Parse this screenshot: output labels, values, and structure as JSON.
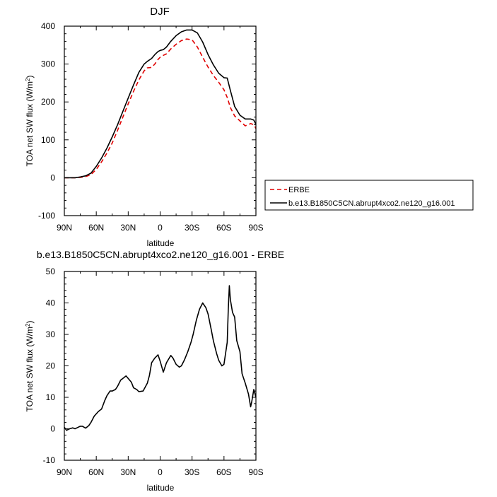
{
  "chart_data": [
    {
      "type": "line",
      "title": "DJF",
      "xlabel": "latitude",
      "ylabel": "TOA net SW flux (W/m",
      "ylabel_sup": "2",
      "ylabel_close": ")",
      "xlim": [
        90,
        -90
      ],
      "ylim": [
        -100,
        400
      ],
      "xticks": [
        90,
        60,
        30,
        0,
        -30,
        -60,
        -90
      ],
      "xtick_labels": [
        "90N",
        "60N",
        "30N",
        "0",
        "30S",
        "60S",
        "90S"
      ],
      "yticks": [
        -100,
        0,
        100,
        200,
        300,
        400
      ],
      "ytick_labels": [
        "-100",
        "0",
        "100",
        "200",
        "300",
        "400"
      ],
      "legend_position": "right, outside plot",
      "series": [
        {
          "name": "ERBE",
          "color": "#e00000",
          "dash": "dashed",
          "x": [
            90,
            85,
            80,
            75,
            70,
            65,
            60,
            55,
            50,
            45,
            40,
            35,
            30,
            25,
            20,
            15,
            12,
            8,
            5,
            2,
            0,
            -3,
            -6,
            -10,
            -15,
            -20,
            -25,
            -30,
            -35,
            -40,
            -45,
            -50,
            -55,
            -60,
            -63,
            -66,
            -70,
            -75,
            -80,
            -85,
            -88,
            -90
          ],
          "y": [
            0,
            0,
            0,
            1,
            3,
            8,
            22,
            42,
            65,
            92,
            125,
            160,
            195,
            228,
            258,
            282,
            290,
            291,
            300,
            312,
            318,
            323,
            327,
            340,
            352,
            362,
            366,
            364,
            345,
            318,
            292,
            270,
            252,
            232,
            212,
            185,
            163,
            150,
            137,
            143,
            140,
            130
          ]
        },
        {
          "name": "b.e13.B1850C5CN.abrupt4xco2.ne120_g16.001",
          "color": "#000000",
          "dash": "solid",
          "x": [
            90,
            85,
            80,
            75,
            70,
            65,
            60,
            55,
            50,
            45,
            40,
            35,
            30,
            25,
            20,
            15,
            12,
            8,
            5,
            2,
            0,
            -3,
            -6,
            -10,
            -15,
            -20,
            -25,
            -30,
            -35,
            -40,
            -45,
            -50,
            -55,
            -60,
            -63,
            -66,
            -70,
            -75,
            -80,
            -85,
            -88,
            -90
          ],
          "y": [
            0,
            0,
            0,
            2,
            5,
            12,
            30,
            52,
            78,
            108,
            140,
            175,
            210,
            245,
            278,
            300,
            307,
            315,
            325,
            333,
            336,
            338,
            345,
            360,
            375,
            385,
            390,
            390,
            382,
            358,
            325,
            298,
            276,
            264,
            263,
            230,
            188,
            165,
            155,
            155,
            152,
            141
          ]
        }
      ]
    },
    {
      "type": "line",
      "title": "b.e13.B1850C5CN.abrupt4xco2.ne120_g16.001 - ERBE",
      "xlabel": "latitude",
      "ylabel": "TOA net SW flux (W/m",
      "ylabel_sup": "2",
      "ylabel_close": ")",
      "xlim": [
        90,
        -90
      ],
      "ylim": [
        -10,
        50
      ],
      "xticks": [
        90,
        60,
        30,
        0,
        -30,
        -60,
        -90
      ],
      "xtick_labels": [
        "90N",
        "60N",
        "30N",
        "0",
        "30S",
        "60S",
        "90S"
      ],
      "yticks": [
        -10,
        0,
        10,
        20,
        30,
        40,
        50
      ],
      "ytick_labels": [
        "-10",
        "0",
        "10",
        "20",
        "30",
        "40",
        "50"
      ],
      "series": [
        {
          "color": "#000000",
          "dash": "solid",
          "x": [
            90,
            88,
            85,
            82,
            80,
            77,
            75,
            73,
            70,
            67,
            65,
            62,
            58,
            55,
            52,
            50,
            47,
            45,
            42,
            40,
            37,
            35,
            32,
            30,
            27,
            25,
            22,
            20,
            16,
            12,
            10,
            8,
            5,
            2,
            0,
            -3,
            -6,
            -10,
            -12,
            -15,
            -18,
            -20,
            -23,
            -26,
            -29,
            -31,
            -34,
            -37,
            -40,
            -43,
            -45,
            -48,
            -50,
            -53,
            -55,
            -58,
            -60,
            -63,
            -64,
            -65,
            -66,
            -68,
            -70,
            -72,
            -75,
            -77,
            -80,
            -83,
            -85,
            -86,
            -88,
            -90
          ],
          "y": [
            0.5,
            -0.5,
            0,
            0.3,
            0,
            0.5,
            0.8,
            0.8,
            0.2,
            1.0,
            2.0,
            4.0,
            5.5,
            6.3,
            9.0,
            10.5,
            12.0,
            12.0,
            12.5,
            13.5,
            15.5,
            16.0,
            16.8,
            16.0,
            14.8,
            13.0,
            12.5,
            11.8,
            12.0,
            14.5,
            17.0,
            21.0,
            22.5,
            23.5,
            21.5,
            18.0,
            21.0,
            23.3,
            22.5,
            20.5,
            19.6,
            20.0,
            22.0,
            24.5,
            27.5,
            30.0,
            34.5,
            38.0,
            40.0,
            38.5,
            36.5,
            31.5,
            28.0,
            24.0,
            21.8,
            20.0,
            20.5,
            27.5,
            38.0,
            45.5,
            41.0,
            37.0,
            35.5,
            28.0,
            24.5,
            17.5,
            14.5,
            11.0,
            7.0,
            8.5,
            12.5,
            10.0
          ]
        }
      ]
    }
  ]
}
